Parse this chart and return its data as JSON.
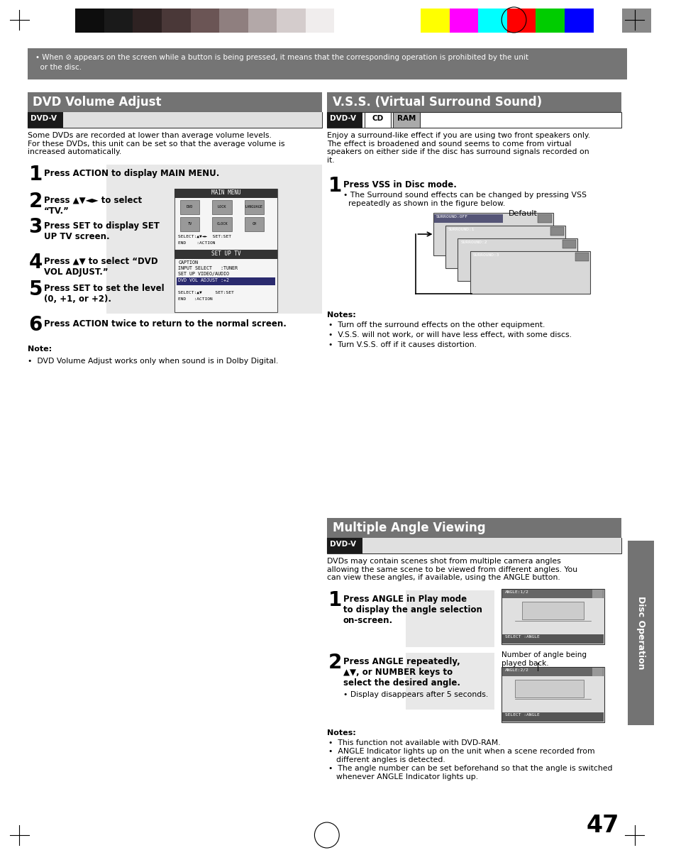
{
  "bg_color": "#ffffff",
  "top_notice_bg": "#757575",
  "top_notice_text1": "• When ⊘ appears on the screen while a button is being pressed, it means that the corresponding operation is prohibited by the unit",
  "top_notice_text2": "  or the disc.",
  "color_strip_left": [
    "#0d0d0d",
    "#1a1a1a",
    "#2e2222",
    "#4a3838",
    "#6b5555",
    "#8f7f7f",
    "#b3a8a8",
    "#d4cccc",
    "#f0eded"
  ],
  "color_strip_right": [
    "#ffff00",
    "#ff00ff",
    "#00ffff",
    "#ff0000",
    "#00cc00",
    "#0000ff",
    "#ffffff",
    "#888888"
  ],
  "section_header_bg": "#737373",
  "badge_dvdv_bg": "#1a1a1a",
  "badge_dvdv_text": "#ffffff",
  "badge_cd_bg": "#ffffff",
  "badge_ram_bg": "#aaaaaa",
  "step_num_size": 20,
  "body_fs": 8.0,
  "step_text_fs": 8.5,
  "note_fs": 7.8,
  "section1_title": "DVD Volume Adjust",
  "section1_badge": "DVD-V",
  "section1_intro": "Some DVDs are recorded at lower than average volume levels.\nFor these DVDs, this unit can be set so that the average volume is\nincreased automatically.",
  "section2_title": "V.S.S. (Virtual Surround Sound)",
  "section2_badges": [
    "DVD-V",
    "CD",
    "RAM"
  ],
  "section2_intro": "Enjoy a surround-like effect if you are using two front speakers only.\nThe effect is broadened and sound seems to come from virtual\nspeakers on either side if the disc has surround signals recorded on\nit.",
  "section2_step1_title": "Press VSS in Disc mode.",
  "section2_step1_sub": "• The Surround sound effects can be changed by pressing VSS\n  repeatedly as shown in the figure below.",
  "section2_default_label": "Default",
  "section2_surround_labels": [
    "SURROUND:OFF",
    "SURROUND:1",
    "SURROUND:2",
    "SURROUND:3"
  ],
  "section2_notes_title": "Notes:",
  "section2_notes": [
    "•  Turn off the surround effects on the other equipment.",
    "•  V.S.S. will not work, or will have less effect, with some discs.",
    "•  Turn V.S.S. off if it causes distortion."
  ],
  "section3_title": "Multiple Angle Viewing",
  "section3_badge": "DVD-V",
  "section3_intro": "DVDs may contain scenes shot from multiple camera angles\nallowing the same scene to be viewed from different angles. You\ncan view these angles, if available, using the ANGLE button.",
  "section3_step1_title": "Press ANGLE in Play mode\nto display the angle selection\non-screen.",
  "section3_step2_title": "Press ANGLE repeatedly,\n▲▼, or NUMBER keys to\nselect the desired angle.",
  "section3_step2_sub": "• Display disappears after 5 seconds.",
  "section3_number_note": "Number of angle being\nplayed back.",
  "section3_notes_title": "Notes:",
  "section3_notes": [
    "•  This function not available with DVD-RAM.",
    "•  ANGLE Indicator lights up on the unit when a scene recorded from\n   different angles is detected.",
    "•  The angle number can be set beforehand so that the angle is switched\n   whenever ANGLE Indicator lights up."
  ],
  "page_number": "47",
  "side_label": "Disc Operation",
  "grey_step_bg": "#e8e8e8",
  "step1_note": "Note:",
  "step1_note_text": "•  DVD Volume Adjust works only when sound is in Dolby Digital."
}
